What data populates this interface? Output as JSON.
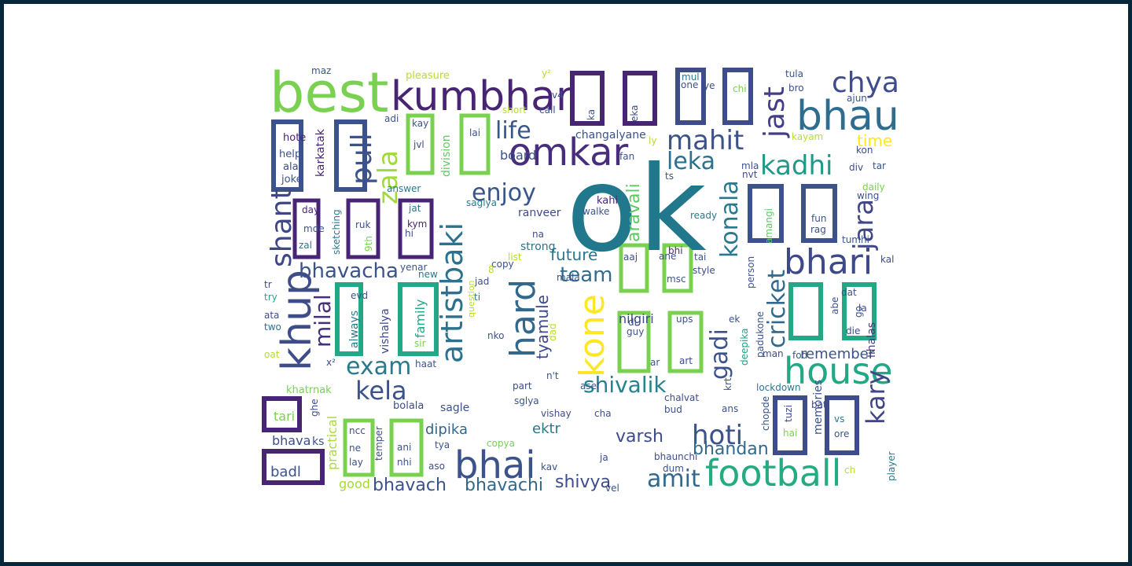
{
  "words": [
    {
      "t": "ok",
      "c": "#21778b"
    },
    {
      "t": "best",
      "c": "#7ad151"
    },
    {
      "t": "kumbhar",
      "c": "#482475"
    },
    {
      "t": "bhau",
      "c": "#2e6d8e"
    },
    {
      "t": "chya",
      "c": "#3e4c8a"
    },
    {
      "t": "jast",
      "c": "#433e85"
    },
    {
      "t": "omkar",
      "c": "#472d7b"
    },
    {
      "t": "mahit",
      "c": "#3b528b"
    },
    {
      "t": "leka",
      "c": "#2c718e"
    },
    {
      "t": "life",
      "c": "#38588c"
    },
    {
      "t": "kadhi",
      "c": "#1f998a"
    },
    {
      "t": "enjoy",
      "c": "#39568c"
    },
    {
      "t": "zala",
      "c": "#9fda3a"
    },
    {
      "t": "pull",
      "c": "#3b528b"
    },
    {
      "t": "bhari",
      "c": "#3e4989"
    },
    {
      "t": "konala",
      "c": "#2a788e"
    },
    {
      "t": "jara",
      "c": "#404688"
    },
    {
      "t": "shant",
      "c": "#3f4788"
    },
    {
      "t": "khup",
      "c": "#3e4c8a"
    },
    {
      "t": "artistbaki",
      "c": "#2c728e"
    },
    {
      "t": "hard",
      "c": "#31688e"
    },
    {
      "t": "kone",
      "c": "#fde725"
    },
    {
      "t": "house",
      "c": "#22a884"
    },
    {
      "t": "bhavacha",
      "c": "#3b528b"
    },
    {
      "t": "team",
      "c": "#2f6c8e"
    },
    {
      "t": "future",
      "c": "#2a788e"
    },
    {
      "t": "aravali",
      "c": "#5ec962"
    },
    {
      "t": "gadi",
      "c": "#3b528b"
    },
    {
      "t": "cricket",
      "c": "#31688e"
    },
    {
      "t": "kary",
      "c": "#414487"
    },
    {
      "t": "milal",
      "c": "#472f7d"
    },
    {
      "t": "exam",
      "c": "#2a788e"
    },
    {
      "t": "kela",
      "c": "#3b528b"
    },
    {
      "t": "tyamule",
      "c": "#3e4a89"
    },
    {
      "t": "nilgiri",
      "c": "#3f4788"
    },
    {
      "t": "shivalik",
      "c": "#26828e"
    },
    {
      "t": "hoti",
      "c": "#3b528b"
    },
    {
      "t": "remember",
      "c": "#3b528b"
    },
    {
      "t": "football",
      "c": "#25ab82"
    },
    {
      "t": "bhai",
      "c": "#3b528b"
    },
    {
      "t": "amit",
      "c": "#31688e"
    },
    {
      "t": "varsh",
      "c": "#3e4c8a"
    },
    {
      "t": "bhandan",
      "c": "#31688e"
    },
    {
      "t": "shivya",
      "c": "#3e4c8a"
    },
    {
      "t": "ektr",
      "c": "#2a788e"
    },
    {
      "t": "bhavachi",
      "c": "#31688e"
    },
    {
      "t": "bhavach",
      "c": "#3b528b"
    },
    {
      "t": "dipika",
      "c": "#31688e"
    },
    {
      "t": "time",
      "c": "#fde725"
    },
    {
      "t": "board",
      "c": "#3b528b"
    },
    {
      "t": "lihalas",
      "c": "#443983"
    },
    {
      "t": "memories",
      "c": "#3b528b"
    },
    {
      "t": "family",
      "c": "#22a884"
    },
    {
      "t": "always",
      "c": "#2a788e"
    },
    {
      "t": "division",
      "c": "#5ec962"
    },
    {
      "t": "karkatak",
      "c": "#482475"
    },
    {
      "t": "sketching",
      "c": "#2a788e"
    },
    {
      "t": "vishalya",
      "c": "#3e4a89"
    },
    {
      "t": "practical",
      "c": "#aadc32"
    },
    {
      "t": "question",
      "c": "#b5de2b"
    },
    {
      "t": "padukone",
      "c": "#3b528b"
    },
    {
      "t": "deepika",
      "c": "#1f9e89"
    },
    {
      "t": "lockdown",
      "c": "#2a788e"
    },
    {
      "t": "changalyane",
      "c": "#3b528b"
    },
    {
      "t": "ranveer",
      "c": "#3e4a89"
    },
    {
      "t": "strong",
      "c": "#2c728e"
    },
    {
      "t": "pleasure",
      "c": "#b5de2b"
    },
    {
      "t": "badl",
      "c": "#3b528b"
    },
    {
      "t": "tari",
      "c": "#7ad151"
    },
    {
      "t": "bhava",
      "c": "#3e4c8a"
    },
    {
      "t": "ks",
      "c": "#3b528b"
    },
    {
      "t": "good",
      "c": "#a2da37"
    },
    {
      "t": "sagle",
      "c": "#3b528b"
    },
    {
      "t": "bolala",
      "c": "#3e4c8a"
    },
    {
      "t": "khatrnak",
      "c": "#7ad151"
    },
    {
      "t": "oat",
      "c": "#b5de2b"
    },
    {
      "t": "two",
      "c": "#2c718e"
    },
    {
      "t": "ata",
      "c": "#3e4c8a"
    },
    {
      "t": "try",
      "c": "#22a884"
    },
    {
      "t": "tr",
      "c": "#3e4c8a"
    },
    {
      "t": "hote",
      "c": "#482475"
    },
    {
      "t": "help",
      "c": "#3b528b"
    },
    {
      "t": "ala",
      "c": "#3e4c8a"
    },
    {
      "t": "joke",
      "c": "#3b528b"
    },
    {
      "t": "day",
      "c": "#482475"
    },
    {
      "t": "mde",
      "c": "#3b528b"
    },
    {
      "t": "zal",
      "c": "#2a788e"
    },
    {
      "t": "ruk",
      "c": "#3b528b"
    },
    {
      "t": "9th",
      "c": "#7ad151"
    },
    {
      "t": "kym",
      "c": "#482475"
    },
    {
      "t": "jat",
      "c": "#2a788e"
    },
    {
      "t": "hi",
      "c": "#3e4c8a"
    },
    {
      "t": "kay",
      "c": "#3b528b"
    },
    {
      "t": "jvl",
      "c": "#3e4c8a"
    },
    {
      "t": "lai",
      "c": "#3b528b"
    },
    {
      "t": "adi",
      "c": "#3b528b"
    },
    {
      "t": "answer",
      "c": "#2a788e"
    },
    {
      "t": "saglya",
      "c": "#2a788e"
    },
    {
      "t": "copy",
      "c": "#3b528b"
    },
    {
      "t": "list",
      "c": "#b5de2b"
    },
    {
      "t": "new",
      "c": "#2a788e"
    },
    {
      "t": "yenar",
      "c": "#3b528b"
    },
    {
      "t": "jad",
      "c": "#3e4c8a"
    },
    {
      "t": "ti",
      "c": "#2a788e"
    },
    {
      "t": "evd",
      "c": "#3b528b"
    },
    {
      "t": "sir",
      "c": "#7ad151"
    },
    {
      "t": "haat",
      "c": "#3b528b"
    },
    {
      "t": "nko",
      "c": "#3b528b"
    },
    {
      "t": "dad",
      "c": "#b5de2b"
    },
    {
      "t": "n't",
      "c": "#3b528b"
    },
    {
      "t": "part",
      "c": "#3e4c8a"
    },
    {
      "t": "sglya",
      "c": "#3b528b"
    },
    {
      "t": "vishay",
      "c": "#3e4c8a"
    },
    {
      "t": "asel",
      "c": "#3b528b"
    },
    {
      "t": "cha",
      "c": "#3e4c8a"
    },
    {
      "t": "bud",
      "c": "#3b528b"
    },
    {
      "t": "chalvat",
      "c": "#3e4c8a"
    },
    {
      "t": "ans",
      "c": "#3b528b"
    },
    {
      "t": "krt",
      "c": "#3e4c8a"
    },
    {
      "t": "chopde",
      "c": "#3b528b"
    },
    {
      "t": "tuzi",
      "c": "#3e4c8a"
    },
    {
      "t": "hai",
      "c": "#7ad151"
    },
    {
      "t": "bat",
      "c": "#3e4c8a"
    },
    {
      "t": "vs",
      "c": "#2a788e"
    },
    {
      "t": "ore",
      "c": "#3b528b"
    },
    {
      "t": "player",
      "c": "#2a788e"
    },
    {
      "t": "ch",
      "c": "#b5de2b"
    },
    {
      "t": "ncc",
      "c": "#3e4c8a"
    },
    {
      "t": "ne",
      "c": "#3b528b"
    },
    {
      "t": "lay",
      "c": "#3e4c8a"
    },
    {
      "t": "ani",
      "c": "#3b528b"
    },
    {
      "t": "nhi",
      "c": "#3b528b"
    },
    {
      "t": "temper",
      "c": "#3e4c8a"
    },
    {
      "t": "tya",
      "c": "#3b528b"
    },
    {
      "t": "aso",
      "c": "#3e4c8a"
    },
    {
      "t": "copya",
      "c": "#7ad151"
    },
    {
      "t": "kav",
      "c": "#3b528b"
    },
    {
      "t": "ja",
      "c": "#3e4c8a"
    },
    {
      "t": "dum",
      "c": "#3b528b"
    },
    {
      "t": "bhaunchi",
      "c": "#3e4c8a"
    },
    {
      "t": "vel",
      "c": "#3b528b"
    },
    {
      "t": "kahi",
      "c": "#482475"
    },
    {
      "t": "walke",
      "c": "#3b528b"
    },
    {
      "t": "ts",
      "c": "#3b528b"
    },
    {
      "t": "fan",
      "c": "#3b528b"
    },
    {
      "t": "ready",
      "c": "#2a788e"
    },
    {
      "t": "ane",
      "c": "#3b528b"
    },
    {
      "t": "bhi",
      "c": "#482475"
    },
    {
      "t": "aaj",
      "c": "#3e4c8a"
    },
    {
      "t": "tai",
      "c": "#3b528b"
    },
    {
      "t": "style",
      "c": "#3e4c8a"
    },
    {
      "t": "msc",
      "c": "#3b528b"
    },
    {
      "t": "di",
      "c": "#3e4c8a"
    },
    {
      "t": "guy",
      "c": "#3b528b"
    },
    {
      "t": "ups",
      "c": "#3b528b"
    },
    {
      "t": "art",
      "c": "#3e4c8a"
    },
    {
      "t": "ar",
      "c": "#3b528b"
    },
    {
      "t": "ek",
      "c": "#3b528b"
    },
    {
      "t": "man",
      "c": "#3e4c8a"
    },
    {
      "t": "fod",
      "c": "#3b528b"
    },
    {
      "t": "ka",
      "c": "#3b528b"
    },
    {
      "t": "eka",
      "c": "#3e4c8a"
    },
    {
      "t": "one",
      "c": "#3b528b"
    },
    {
      "t": "ye",
      "c": "#3e4c8a"
    },
    {
      "t": "mul",
      "c": "#2a788e"
    },
    {
      "t": "chi",
      "c": "#7ad151"
    },
    {
      "t": "tula",
      "c": "#3b528b"
    },
    {
      "t": "bro",
      "c": "#3e4c8a"
    },
    {
      "t": "ajun",
      "c": "#3b528b"
    },
    {
      "t": "kayam",
      "c": "#b5de2b"
    },
    {
      "t": "kon",
      "c": "#3e4c8a"
    },
    {
      "t": "tar",
      "c": "#3b528b"
    },
    {
      "t": "div",
      "c": "#3e4c8a"
    },
    {
      "t": "wing",
      "c": "#3b528b"
    },
    {
      "t": "daily",
      "c": "#7ad151"
    },
    {
      "t": "fun",
      "c": "#3b528b"
    },
    {
      "t": "rag",
      "c": "#3e4c8a"
    },
    {
      "t": "tumhi",
      "c": "#3b528b"
    },
    {
      "t": "kal",
      "c": "#3e4c8a"
    },
    {
      "t": "dat",
      "c": "#3b528b"
    },
    {
      "t": "la",
      "c": "#3e4c8a"
    },
    {
      "t": "go",
      "c": "#3b528b"
    },
    {
      "t": "die",
      "c": "#3e4c8a"
    },
    {
      "t": "abe",
      "c": "#3b528b"
    },
    {
      "t": "mla",
      "c": "#3b528b"
    },
    {
      "t": "nvt",
      "c": "#3e4c8a"
    },
    {
      "t": "amangi",
      "c": "#5ec962"
    },
    {
      "t": "person",
      "c": "#3b528b"
    },
    {
      "t": "ly",
      "c": "#b5de2b"
    },
    {
      "t": "short",
      "c": "#b5de2b"
    },
    {
      "t": "call",
      "c": "#3b528b"
    },
    {
      "t": "v4",
      "c": "#3e4c8a"
    },
    {
      "t": "mala",
      "c": "#3b528b"
    },
    {
      "t": "na",
      "c": "#3e4c8a"
    },
    {
      "t": "maz",
      "c": "#3b528b"
    },
    {
      "t": "8",
      "c": "#b5de2b"
    },
    {
      "t": "ghe",
      "c": "#3e4c8a"
    },
    {
      "t": "y²",
      "c": "#b5de2b"
    },
    {
      "t": "x²",
      "c": "#3e4c8a"
    }
  ]
}
